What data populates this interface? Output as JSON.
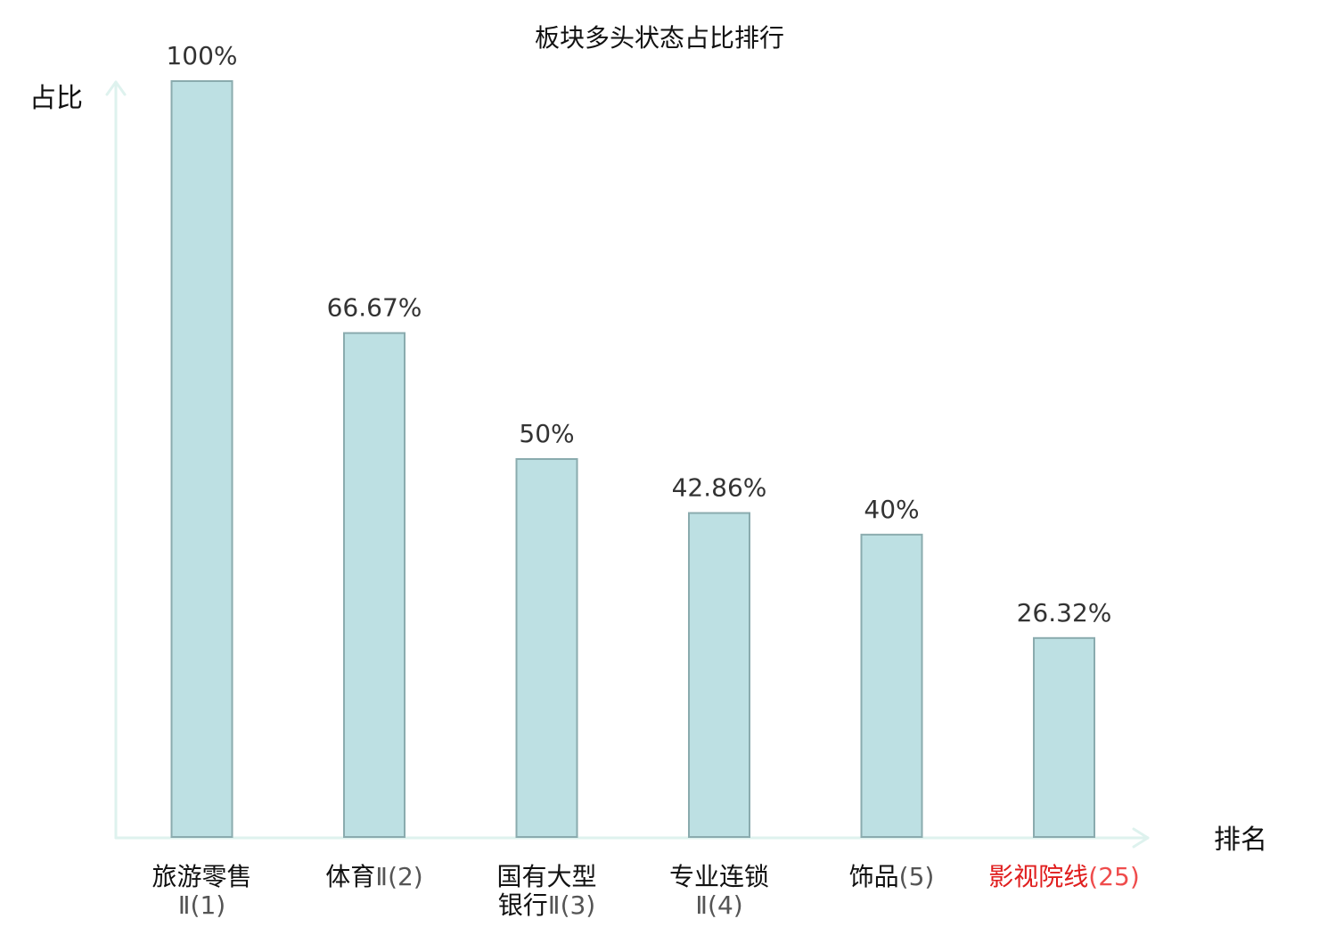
{
  "chart_data": {
    "type": "bar",
    "title": "板块多头状态占比排行",
    "ylabel": "占比",
    "xlabel": "排名",
    "ylim": [
      0,
      100
    ],
    "grid": false,
    "categories": [
      {
        "lines": [
          {
            "main": "旅游零售",
            "sub": ""
          },
          {
            "main": "",
            "sub": "Ⅱ(1)"
          }
        ],
        "highlight": false
      },
      {
        "lines": [
          {
            "main": "体育",
            "sub": "Ⅱ(2)"
          }
        ],
        "highlight": false
      },
      {
        "lines": [
          {
            "main": "国有大型",
            "sub": ""
          },
          {
            "main": "银行",
            "sub": "Ⅱ(3)"
          }
        ],
        "highlight": false
      },
      {
        "lines": [
          {
            "main": "专业连锁",
            "sub": ""
          },
          {
            "main": "",
            "sub": "Ⅱ(4)"
          }
        ],
        "highlight": false
      },
      {
        "lines": [
          {
            "main": "饰品",
            "sub": "(5)"
          }
        ],
        "highlight": false
      },
      {
        "lines": [
          {
            "main": "影视院线",
            "sub": "(25)"
          }
        ],
        "highlight": true
      }
    ],
    "values": [
      100,
      66.67,
      50,
      42.86,
      40,
      26.32
    ],
    "value_labels": [
      "100%",
      "66.67%",
      "50%",
      "42.86%",
      "40%",
      "26.32%"
    ]
  },
  "colors": {
    "bar_fill": "#bde0e3",
    "bar_stroke": "#8aabae",
    "axis": "#def2ee",
    "highlight": "#e01e1e"
  }
}
